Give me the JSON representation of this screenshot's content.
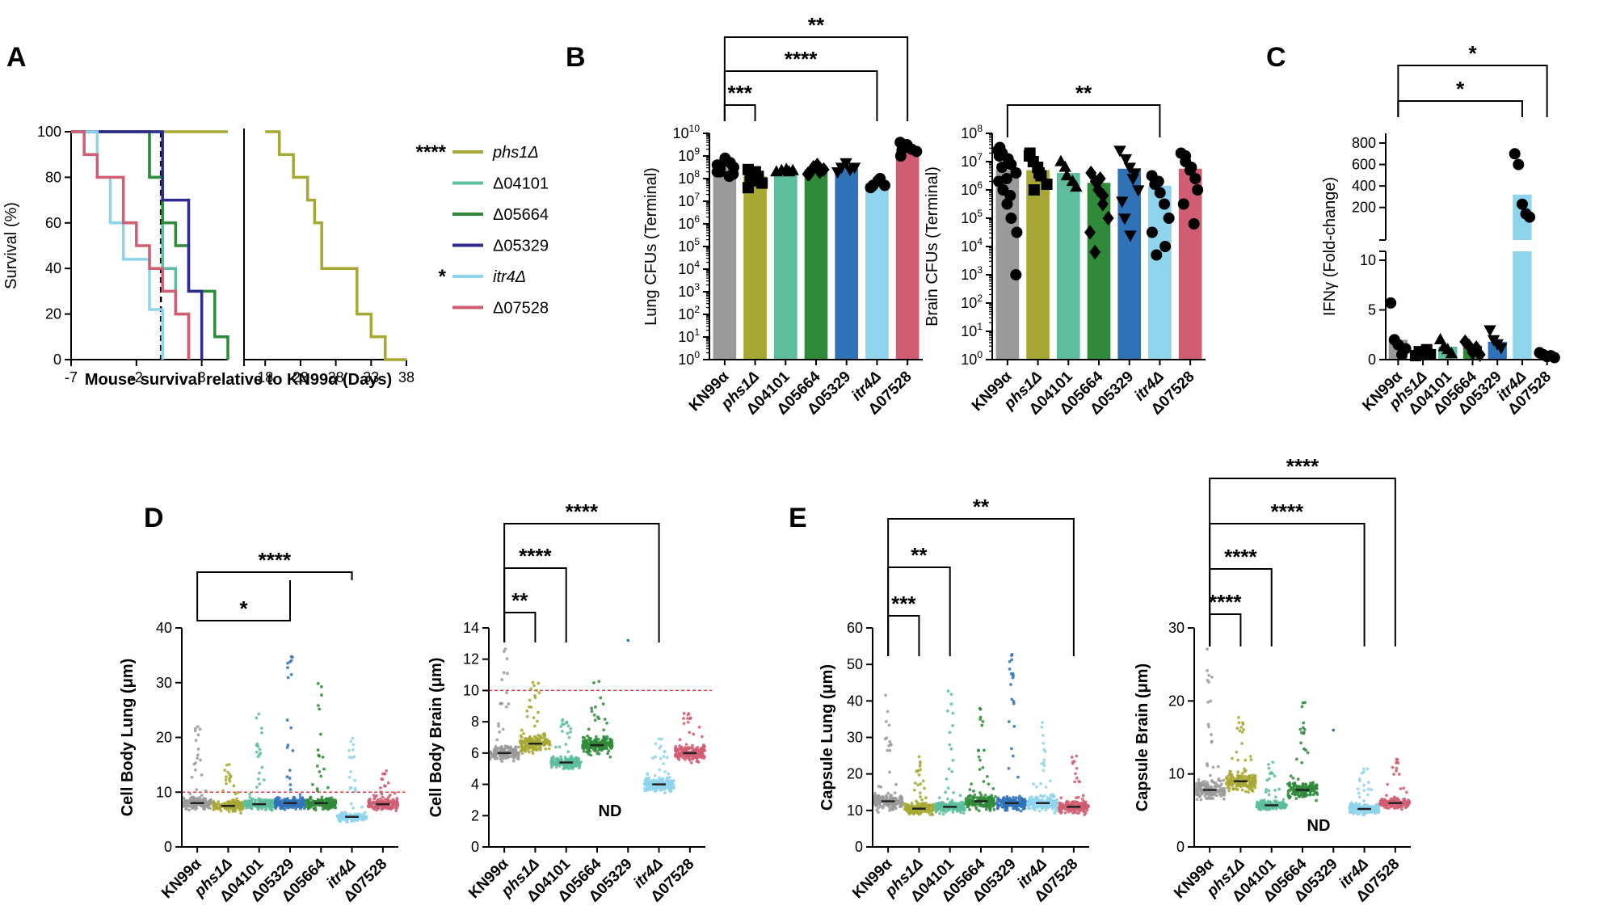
{
  "colors": {
    "KN99α": "#9a9a9a",
    "phs1Δ": "#a7a833",
    "Δ04101": "#5dbd9c",
    "Δ05664": "#2f8a3a",
    "Δ05329": "#2f72b8",
    "itr4Δ": "#8ed4ec",
    "Δ07528": "#d05d72",
    "Δ05329_line": "#2e2a8f",
    "refline": "#e04040"
  },
  "panel_labels": {
    "A": "A",
    "B": "B",
    "C": "C",
    "D": "D",
    "E": "E"
  },
  "chart_data": [
    {
      "id": "A",
      "type": "line",
      "subtype": "survival-step",
      "xlabel": "Mouse survival relative to KN99α (Days)",
      "ylabel": "Survival (%)",
      "xticks_left": [
        "-7",
        "-2",
        "3"
      ],
      "xticks_right": [
        "18",
        "23",
        "28",
        "33",
        "38"
      ],
      "yticks": [
        "0",
        "20",
        "40",
        "60",
        "80",
        "100"
      ],
      "ylim": [
        0,
        100
      ],
      "reference_day": 0,
      "legend": [
        {
          "name": "phs1Δ",
          "italic": true,
          "sig": "****"
        },
        {
          "name": "Δ04101",
          "italic": false,
          "sig": ""
        },
        {
          "name": "Δ05664",
          "italic": false,
          "sig": ""
        },
        {
          "name": "Δ05329",
          "italic": false,
          "sig": ""
        },
        {
          "name": "itr4Δ",
          "italic": true,
          "sig": "*"
        },
        {
          "name": "Δ07528",
          "italic": false,
          "sig": ""
        }
      ],
      "series": [
        {
          "name": "phs1Δ",
          "points": [
            [
              -7,
              100
            ],
            [
              20,
              100
            ],
            [
              20,
              90
            ],
            [
              22,
              90
            ],
            [
              22,
              80
            ],
            [
              24,
              80
            ],
            [
              24,
              70
            ],
            [
              25,
              70
            ],
            [
              25,
              60
            ],
            [
              26,
              60
            ],
            [
              26,
              40
            ],
            [
              31,
              40
            ],
            [
              31,
              20
            ],
            [
              33,
              20
            ],
            [
              33,
              10
            ],
            [
              35,
              10
            ],
            [
              35,
              0
            ],
            [
              38,
              0
            ]
          ]
        },
        {
          "name": "Δ04101",
          "points": [
            [
              -7,
              100
            ],
            [
              -1,
              100
            ],
            [
              -1,
              80
            ],
            [
              0,
              80
            ],
            [
              0,
              40
            ],
            [
              1,
              40
            ],
            [
              1,
              20
            ],
            [
              2,
              20
            ],
            [
              2,
              0
            ]
          ]
        },
        {
          "name": "Δ05664",
          "points": [
            [
              -7,
              100
            ],
            [
              -1,
              100
            ],
            [
              -1,
              80
            ],
            [
              0,
              80
            ],
            [
              0,
              60
            ],
            [
              1,
              60
            ],
            [
              1,
              50
            ],
            [
              2,
              50
            ],
            [
              2,
              30
            ],
            [
              3,
              30
            ],
            [
              3,
              30
            ],
            [
              4,
              30
            ],
            [
              4,
              10
            ],
            [
              5,
              10
            ],
            [
              5,
              0
            ]
          ]
        },
        {
          "name": "Δ05329",
          "points": [
            [
              -7,
              100
            ],
            [
              0,
              100
            ],
            [
              0,
              70
            ],
            [
              2,
              70
            ],
            [
              2,
              30
            ],
            [
              3,
              30
            ],
            [
              3,
              0
            ]
          ]
        },
        {
          "name": "itr4Δ",
          "points": [
            [
              -7,
              100
            ],
            [
              -5,
              100
            ],
            [
              -5,
              80
            ],
            [
              -4,
              80
            ],
            [
              -4,
              60
            ],
            [
              -3,
              60
            ],
            [
              -3,
              44
            ],
            [
              -1,
              44
            ],
            [
              -1,
              22
            ],
            [
              0,
              22
            ],
            [
              0,
              0
            ]
          ]
        },
        {
          "name": "Δ07528",
          "points": [
            [
              -7,
              100
            ],
            [
              -6,
              100
            ],
            [
              -6,
              90
            ],
            [
              -5,
              90
            ],
            [
              -5,
              80
            ],
            [
              -3,
              80
            ],
            [
              -3,
              60
            ],
            [
              -2,
              60
            ],
            [
              -2,
              50
            ],
            [
              -1,
              50
            ],
            [
              -1,
              40
            ],
            [
              0,
              40
            ],
            [
              0,
              30
            ],
            [
              1,
              30
            ],
            [
              1,
              20
            ],
            [
              2,
              20
            ],
            [
              2,
              0
            ]
          ]
        }
      ]
    },
    {
      "id": "B1",
      "type": "bar",
      "scale": "log",
      "ylabel": "Lung CFUs (Terminal)",
      "ytick_exponents": [
        0,
        1,
        2,
        3,
        4,
        5,
        6,
        7,
        8,
        9,
        10
      ],
      "ylim_log": [
        0,
        10
      ],
      "categories": [
        "KN99α",
        "phs1Δ",
        "Δ04101",
        "Δ05664",
        "Δ05329",
        "itr4Δ",
        "Δ07528"
      ],
      "italic_categories": [
        "phs1Δ",
        "itr4Δ"
      ],
      "values_log10": [
        8.5,
        8.1,
        8.35,
        8.4,
        8.45,
        7.8,
        9.3
      ],
      "points_log10": [
        [
          8.3,
          8.5,
          8.9,
          8.7,
          8.2,
          8.6,
          8.4,
          8.8,
          8.1,
          8.5,
          8.6,
          8.3
        ],
        [
          7.6,
          8.0,
          8.3,
          8.1,
          7.8,
          8.4,
          8.2,
          7.9
        ],
        [
          8.3,
          8.35,
          8.4,
          8.3,
          8.35
        ],
        [
          8.2,
          8.5,
          8.6,
          8.3,
          8.4,
          8.2
        ],
        [
          8.3,
          8.5,
          8.7,
          8.4,
          8.5
        ],
        [
          7.6,
          7.7,
          7.9,
          8.0,
          7.7
        ],
        [
          9.0,
          9.4,
          9.5,
          9.3,
          9.2,
          9.6,
          9.3
        ]
      ],
      "markers": [
        "circle",
        "square",
        "triangle",
        "diamond",
        "triangle-down",
        "circle",
        "circle"
      ],
      "brackets": [
        {
          "from": 0,
          "to": 1,
          "label": "***"
        },
        {
          "from": 0,
          "to": 5,
          "label": "****"
        },
        {
          "from": 0,
          "to": 6,
          "label": "**"
        }
      ]
    },
    {
      "id": "B2",
      "type": "bar",
      "scale": "log",
      "ylabel": "Brain CFUs (Terminal)",
      "ytick_exponents": [
        0,
        1,
        2,
        3,
        4,
        5,
        6,
        7,
        8
      ],
      "ylim_log": [
        0,
        8
      ],
      "categories": [
        "KN99α",
        "phs1Δ",
        "Δ04101",
        "Δ05664",
        "Δ05329",
        "itr4Δ",
        "Δ07528"
      ],
      "italic_categories": [
        "phs1Δ",
        "itr4Δ"
      ],
      "values_log10": [
        6.7,
        6.7,
        6.6,
        6.25,
        6.75,
        6.15,
        6.75
      ],
      "points_log10": [
        [
          7.5,
          7.3,
          7.1,
          6.9,
          6.6,
          6.3,
          6.0,
          5.5,
          5.0,
          4.5,
          7.2,
          6.8,
          6.4,
          5.8,
          3.0,
          7.4
        ],
        [
          7.2,
          7.0,
          6.8,
          6.5,
          6.2,
          7.3,
          6.0,
          6.6
        ],
        [
          7.0,
          6.8,
          6.5,
          6.3,
          6.1
        ],
        [
          6.6,
          6.3,
          6.0,
          5.5,
          5.0,
          4.5,
          3.8,
          6.4,
          5.8
        ],
        [
          7.4,
          7.1,
          6.8,
          6.4,
          6.0,
          5.6,
          5.0,
          4.4,
          6.6
        ],
        [
          6.5,
          6.2,
          5.9,
          5.5,
          5.0,
          4.5,
          3.7,
          6.3,
          4.0
        ],
        [
          7.3,
          7.0,
          6.7,
          6.4,
          6.0,
          5.5,
          7.2,
          6.8,
          4.8
        ]
      ],
      "markers": [
        "circle",
        "square",
        "triangle",
        "diamond",
        "triangle-down",
        "circle",
        "circle"
      ],
      "brackets": [
        {
          "from": 0,
          "to": 5,
          "label": "**"
        }
      ]
    },
    {
      "id": "C",
      "type": "bar",
      "scale": "broken-axis",
      "ylabel": "IFNγ (Fold-change)",
      "yticks_lower": [
        0,
        5,
        10
      ],
      "yticks_upper": [
        200,
        400,
        600,
        800
      ],
      "categories": [
        "KN99α",
        "phs1Δ",
        "Δ04101",
        "Δ05664",
        "Δ05329",
        "itr4Δ",
        "Δ07528"
      ],
      "italic_categories": [
        "phs1Δ",
        "itr4Δ"
      ],
      "values": [
        2.0,
        0.7,
        1.3,
        1.4,
        1.8,
        320,
        0.4
      ],
      "points": [
        [
          5.7,
          2.0,
          1.5,
          0.5,
          1.1
        ],
        [
          0.4,
          0.8,
          0.6,
          1.0,
          0.5
        ],
        [
          2.0,
          1.3,
          1.0,
          0.6
        ],
        [
          1.8,
          1.4,
          0.7,
          1.2,
          0.5
        ],
        [
          3.0,
          2.0,
          1.6,
          1.2
        ],
        [
          700,
          600,
          230,
          140,
          110
        ],
        [
          0.7,
          0.5,
          0.3,
          0.4,
          0.2
        ]
      ],
      "markers": [
        "circle",
        "square",
        "triangle",
        "diamond",
        "triangle-down",
        "circle",
        "circle"
      ],
      "brackets": [
        {
          "from": 0,
          "to": 5,
          "label": "*"
        },
        {
          "from": 0,
          "to": 6,
          "label": "*"
        }
      ]
    },
    {
      "id": "D1",
      "type": "scatter",
      "subtype": "beeswarm",
      "ylabel": "Cell Body Lung (μm)",
      "yticks": [
        0,
        10,
        20,
        30,
        40
      ],
      "ylim": [
        0,
        40
      ],
      "reference_line": 10,
      "categories": [
        "KN99α",
        "phs1Δ",
        "Δ04101",
        "Δ05329",
        "Δ05664",
        "itr4Δ",
        "Δ07528"
      ],
      "italic_categories": [
        "phs1Δ",
        "itr4Δ"
      ],
      "medians": [
        8.0,
        7.5,
        7.8,
        8.0,
        8.0,
        5.5,
        7.8
      ],
      "spread": [
        [
          4,
          22
        ],
        [
          4,
          16
        ],
        [
          4,
          25
        ],
        [
          4,
          35
        ],
        [
          4,
          30
        ],
        [
          3,
          21
        ],
        [
          4,
          14
        ]
      ],
      "brackets": [
        {
          "from": 0,
          "to": 3,
          "label": "*"
        },
        {
          "from": 0,
          "to": 5,
          "label": "****"
        }
      ]
    },
    {
      "id": "D2",
      "type": "scatter",
      "subtype": "beeswarm",
      "ylabel": "Cell Body Brain (μm)",
      "yticks": [
        0,
        2,
        4,
        6,
        8,
        10,
        12,
        14
      ],
      "ylim": [
        0,
        14
      ],
      "reference_line": 10,
      "categories": [
        "KN99α",
        "phs1Δ",
        "Δ04101",
        "Δ05664",
        "Δ05329",
        "itr4Δ",
        "Δ07528"
      ],
      "italic_categories": [
        "phs1Δ",
        "itr4Δ"
      ],
      "medians": [
        6.0,
        6.6,
        5.4,
        6.5,
        null,
        4.0,
        6.0
      ],
      "spread": [
        [
          4.2,
          13
        ],
        [
          4.5,
          10.8
        ],
        [
          4.0,
          8.2
        ],
        [
          4.5,
          10.6
        ],
        [
          13.2,
          13.2
        ],
        [
          2.3,
          7.3
        ],
        [
          4.2,
          8.6
        ]
      ],
      "nd_label": "ND",
      "brackets": [
        {
          "from": 0,
          "to": 1,
          "label": "**"
        },
        {
          "from": 0,
          "to": 2,
          "label": "****"
        },
        {
          "from": 0,
          "to": 5,
          "label": "****"
        }
      ]
    },
    {
      "id": "E1",
      "type": "scatter",
      "subtype": "beeswarm",
      "ylabel": "Capsule Lung (μm)",
      "yticks": [
        0,
        10,
        20,
        30,
        40,
        50,
        60
      ],
      "ylim": [
        0,
        60
      ],
      "categories": [
        "KN99α",
        "phs1Δ",
        "Δ04101",
        "Δ05664",
        "Δ05329",
        "itr4Δ",
        "Δ07528"
      ],
      "italic_categories": [
        "phs1Δ",
        "itr4Δ"
      ],
      "medians": [
        12.5,
        10.5,
        11.0,
        12.5,
        12.0,
        12.0,
        11.0
      ],
      "spread": [
        [
          5,
          44
        ],
        [
          5,
          27
        ],
        [
          5,
          43
        ],
        [
          5,
          41
        ],
        [
          5,
          53
        ],
        [
          5,
          35
        ],
        [
          5,
          26
        ]
      ],
      "brackets": [
        {
          "from": 0,
          "to": 1,
          "label": "***"
        },
        {
          "from": 0,
          "to": 2,
          "label": "**"
        },
        {
          "from": 0,
          "to": 6,
          "label": "**"
        }
      ]
    },
    {
      "id": "E2",
      "type": "scatter",
      "subtype": "beeswarm",
      "ylabel": "Capsule  Brain (μm)",
      "yticks": [
        0,
        10,
        20,
        30
      ],
      "ylim": [
        0,
        30
      ],
      "categories": [
        "KN99α",
        "phs1Δ",
        "Δ04101",
        "Δ05664",
        "Δ05329",
        "itr4Δ",
        "Δ07528"
      ],
      "italic_categories": [
        "phs1Δ",
        "itr4Δ"
      ],
      "medians": [
        7.8,
        9.0,
        5.7,
        7.8,
        null,
        5.2,
        6.0
      ],
      "spread": [
        [
          3,
          27.5
        ],
        [
          4,
          18
        ],
        [
          3.5,
          12
        ],
        [
          3.5,
          20
        ],
        [
          16,
          16
        ],
        [
          2.5,
          12
        ],
        [
          3.5,
          12.5
        ]
      ],
      "nd_label": "ND",
      "brackets": [
        {
          "from": 0,
          "to": 1,
          "label": "****"
        },
        {
          "from": 0,
          "to": 2,
          "label": "****"
        },
        {
          "from": 0,
          "to": 5,
          "label": "****"
        },
        {
          "from": 0,
          "to": 6,
          "label": "****"
        }
      ]
    }
  ]
}
